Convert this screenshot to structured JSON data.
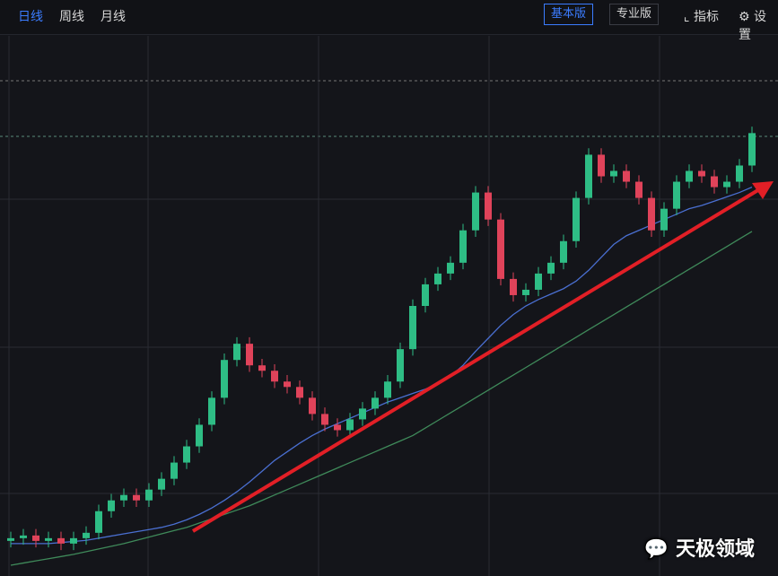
{
  "toolbar": {
    "tabs": [
      "日线",
      "周线",
      "月线"
    ],
    "active_tab": 0,
    "buttons": [
      "基本版",
      "专业版"
    ],
    "active_button": 0,
    "tools": [
      "指标",
      "设置"
    ]
  },
  "chart_data": {
    "type": "candlestick",
    "ylim": [
      0,
      100
    ],
    "grid": true,
    "up_color": "#2ebd85",
    "down_color": "#e0435a",
    "open": [
      6.5,
      7,
      7.5,
      6.5,
      7,
      6,
      7,
      8,
      12,
      14,
      15,
      14,
      16,
      18,
      21,
      24,
      28,
      33,
      40,
      43,
      39,
      38,
      36,
      35,
      33,
      30,
      28,
      27,
      29,
      31,
      33,
      36,
      42,
      50,
      54,
      56,
      58,
      64,
      71,
      66,
      55,
      52,
      53,
      56,
      58,
      62,
      70,
      78,
      74,
      75,
      73,
      70,
      64,
      68,
      73,
      75,
      74,
      72,
      73,
      76
    ],
    "high": [
      8.2,
      8.7,
      8.7,
      8.2,
      8.2,
      8.2,
      9.2,
      13.2,
      15.2,
      16.2,
      16.2,
      17.2,
      19.2,
      22.2,
      25.2,
      29.2,
      34.2,
      41.2,
      44.2,
      44.2,
      40.2,
      39.2,
      37.2,
      36.2,
      34.2,
      31.2,
      29.2,
      30.2,
      32.2,
      34.2,
      37.2,
      43.2,
      51.2,
      55.2,
      57.2,
      59.2,
      65.2,
      72.2,
      72.2,
      67.2,
      56.2,
      54.2,
      57.2,
      59.2,
      63.2,
      71.2,
      79.2,
      79.2,
      76.2,
      76.2,
      74.2,
      71.2,
      69.2,
      74.2,
      76.2,
      76.2,
      75.2,
      74.2,
      77.2,
      83.2
    ],
    "low": [
      5.3,
      5.8,
      5.3,
      5.3,
      4.8,
      4.8,
      5.8,
      6.8,
      10.8,
      12.8,
      12.8,
      12.8,
      14.8,
      16.8,
      19.8,
      22.8,
      26.8,
      31.8,
      38.8,
      37.8,
      36.8,
      34.8,
      33.8,
      31.8,
      28.8,
      26.8,
      25.8,
      25.8,
      27.8,
      29.8,
      31.8,
      34.8,
      40.8,
      48.8,
      52.8,
      54.8,
      56.8,
      62.8,
      64.8,
      53.8,
      50.8,
      50.8,
      51.8,
      54.8,
      56.8,
      60.8,
      68.8,
      72.8,
      72.8,
      71.8,
      68.8,
      62.8,
      62.8,
      66.8,
      71.8,
      72.8,
      70.8,
      70.8,
      71.8,
      74.8
    ],
    "close": [
      7,
      7.5,
      6.5,
      7,
      6,
      7,
      8,
      12,
      14,
      15,
      14,
      16,
      18,
      21,
      24,
      28,
      33,
      40,
      43,
      39,
      38,
      36,
      35,
      33,
      30,
      28,
      27,
      29,
      31,
      33,
      36,
      42,
      50,
      54,
      56,
      58,
      64,
      71,
      66,
      55,
      52,
      53,
      56,
      58,
      62,
      70,
      78,
      74,
      75,
      73,
      70,
      64,
      68,
      73,
      75,
      74,
      72,
      73,
      76,
      82
    ],
    "lines": [
      {
        "color": "#4a6fd1",
        "values": [
          6,
          6,
          6,
          6,
          6.2,
          6.4,
          6.6,
          7,
          7.4,
          7.8,
          8.2,
          8.6,
          9,
          9.6,
          10.4,
          11.4,
          12.6,
          14,
          15.6,
          17.4,
          19.4,
          21.4,
          23,
          24.6,
          26,
          27.2,
          28.2,
          29.2,
          30.2,
          31.2,
          32.2,
          33,
          33.8,
          34.6,
          35.6,
          37,
          39,
          41.6,
          44,
          46.4,
          48.4,
          50,
          51.2,
          52.2,
          53.2,
          54.6,
          56.6,
          59,
          61.4,
          63,
          64,
          65,
          66,
          67,
          68,
          68.6,
          69.4,
          70.2,
          71,
          72
        ]
      },
      {
        "color": "#3f8a5a",
        "values": [
          2,
          2.4,
          2.8,
          3.2,
          3.6,
          4,
          4.5,
          5,
          5.5,
          6,
          6.6,
          7.2,
          7.8,
          8.4,
          9,
          9.8,
          10.6,
          11.4,
          12.2,
          13,
          14,
          15,
          16,
          17,
          18,
          19,
          20,
          21,
          22,
          23,
          24,
          25,
          26,
          27.4,
          28.8,
          30.2,
          31.6,
          33,
          34.4,
          35.8,
          37.2,
          38.6,
          40,
          41.4,
          42.8,
          44.2,
          45.6,
          47,
          48.4,
          49.8,
          51.2,
          52.6,
          54,
          55.4,
          56.8,
          58.2,
          59.6,
          61,
          62.4,
          63.8
        ]
      }
    ]
  },
  "watermark": "天极领域"
}
